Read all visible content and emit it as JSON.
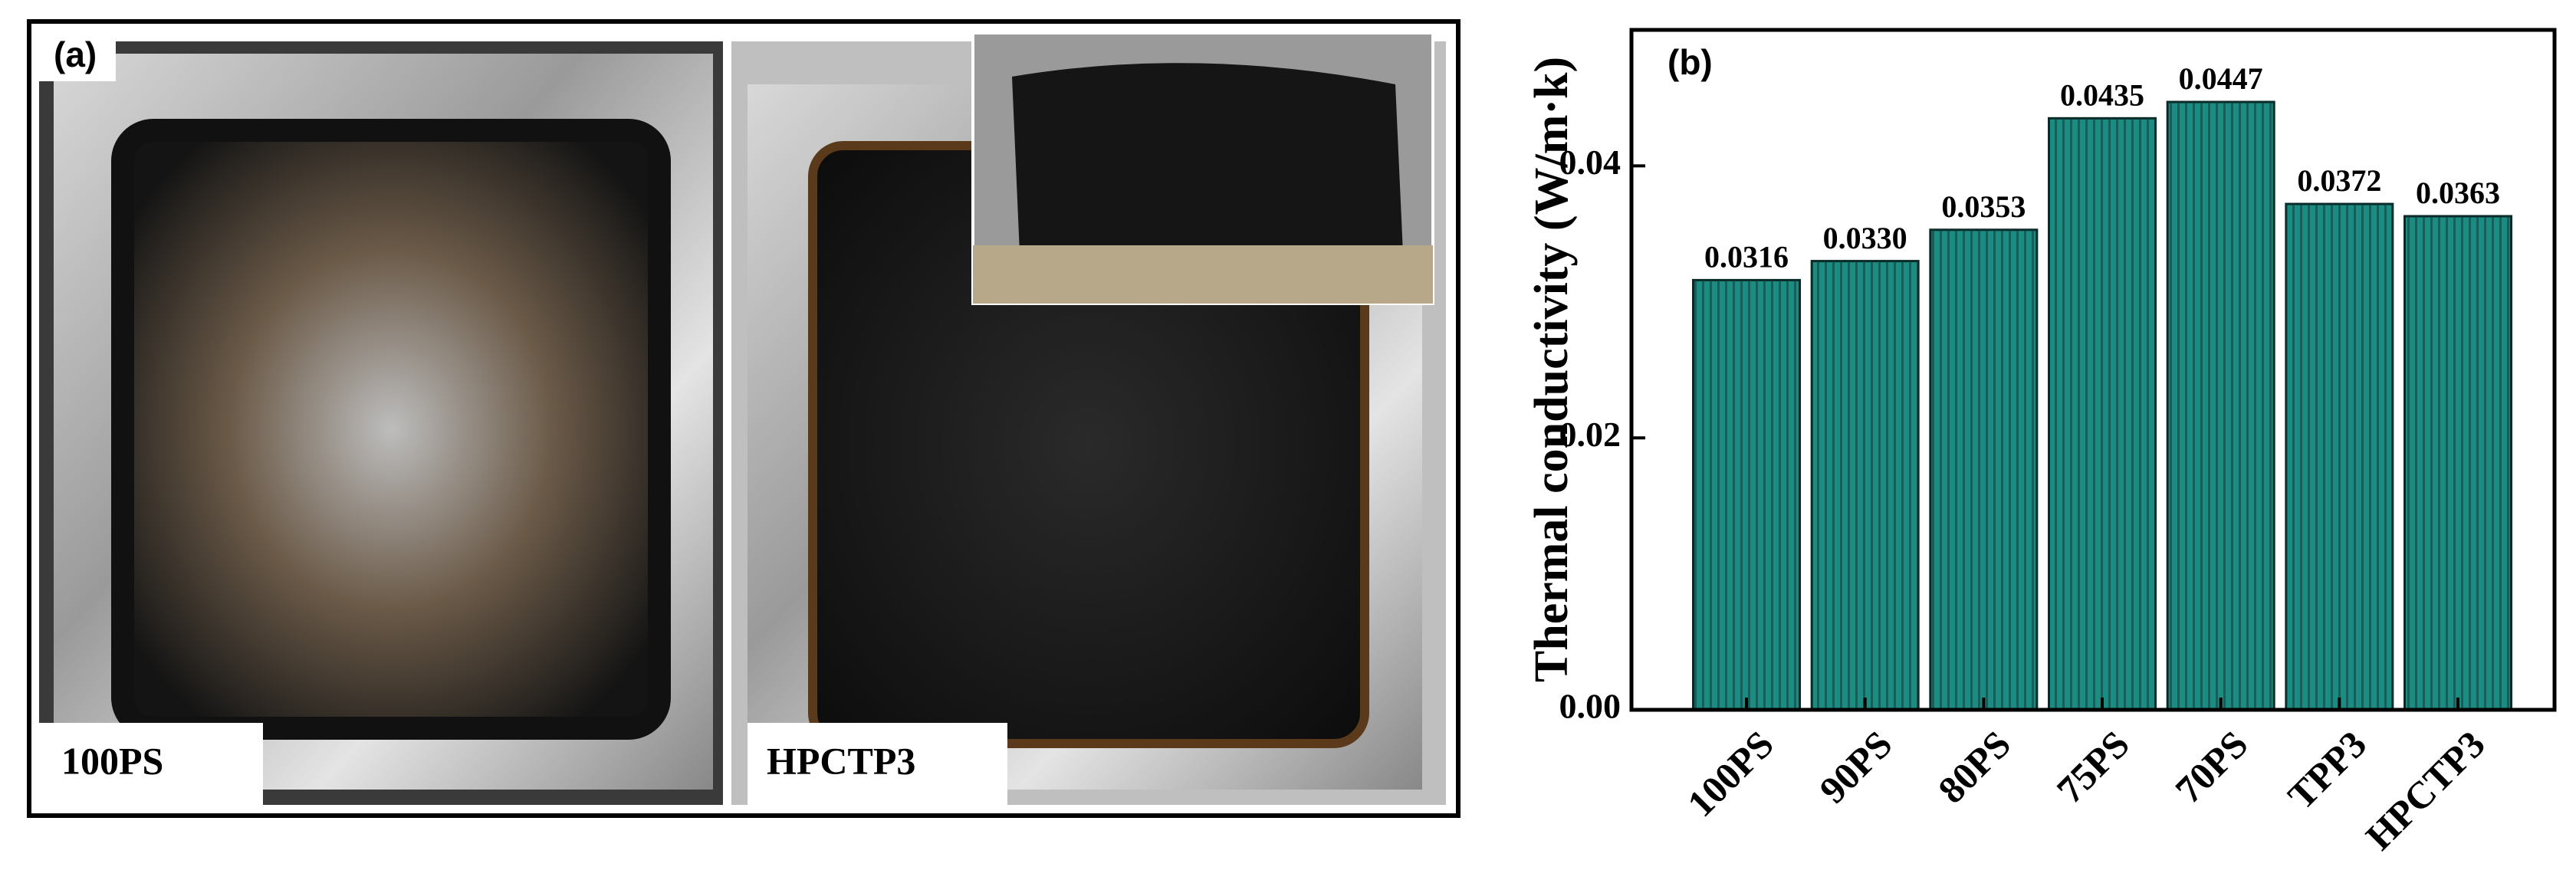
{
  "panel_a": {
    "label": "(a)",
    "photos": [
      {
        "caption": "100PS"
      },
      {
        "caption": "HPCTP3"
      }
    ]
  },
  "chart_data": {
    "type": "bar",
    "label": "(b)",
    "y_label": "Thermal conductivity (W/m·k)",
    "categories": [
      "100PS",
      "90PS",
      "80PS",
      "75PS",
      "70PS",
      "TPP3",
      "HPCTP3"
    ],
    "values": [
      0.0316,
      0.033,
      0.0353,
      0.0435,
      0.0447,
      0.0372,
      0.0363
    ],
    "value_labels": [
      "0.0316",
      "0.0330",
      "0.0353",
      "0.0435",
      "0.0447",
      "0.0372",
      "0.0363"
    ],
    "color": "#1a8c82",
    "ylim": [
      0,
      0.05
    ],
    "yticks": [
      {
        "value": 0,
        "label": "0.00"
      },
      0.02,
      0.04
    ]
  }
}
